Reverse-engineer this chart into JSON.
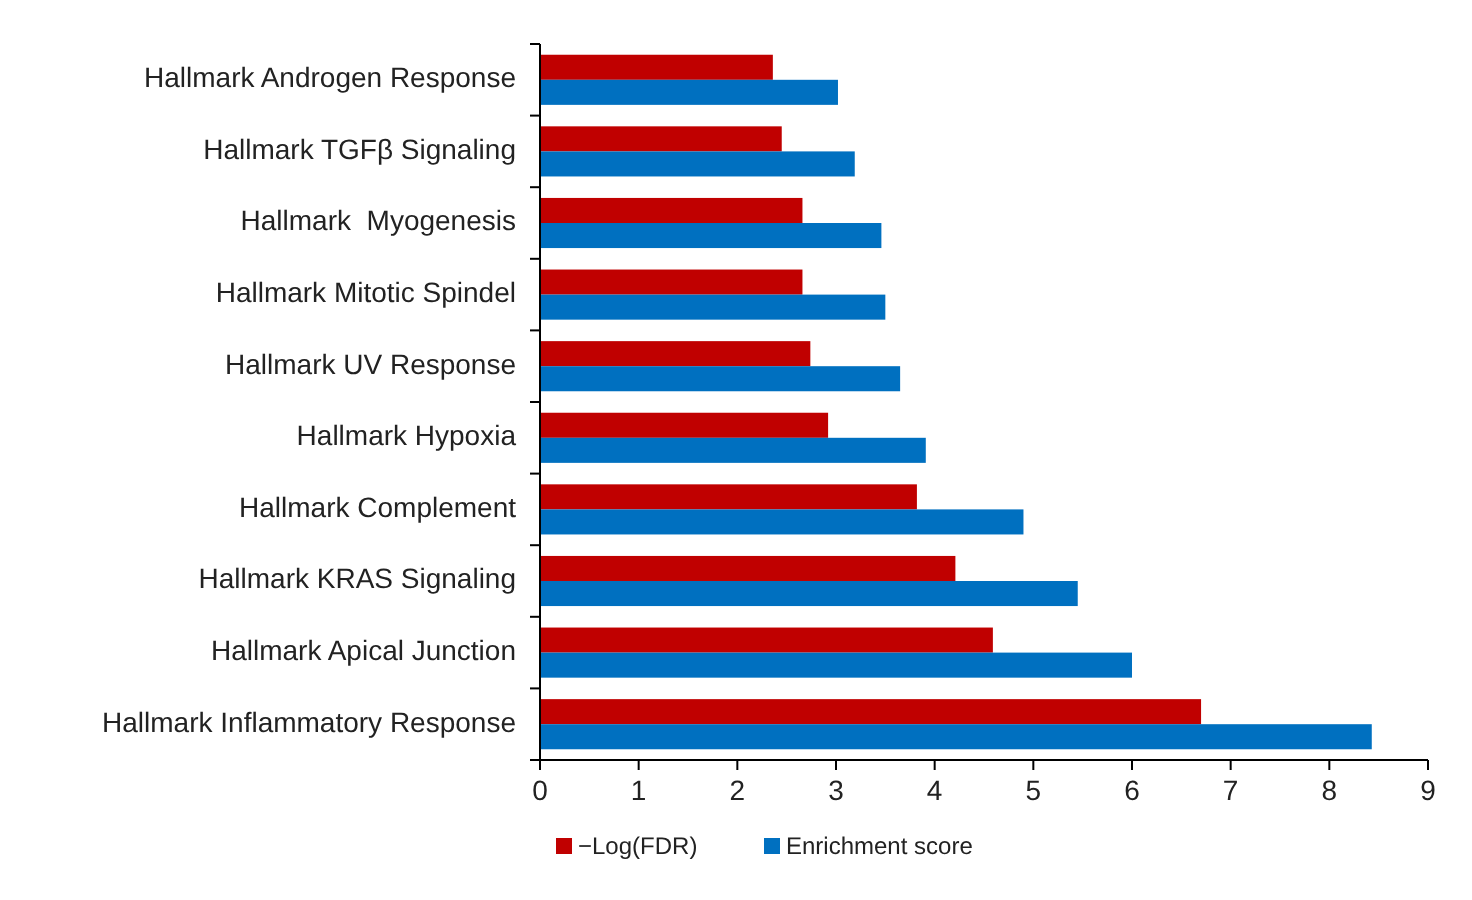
{
  "chart_data": {
    "type": "bar",
    "orientation": "horizontal",
    "categories": [
      "Hallmark Androgen Response",
      "Hallmark TGFβ Signaling",
      "Hallmark  Myogenesis",
      "Hallmark Mitotic Spindel",
      "Hallmark UV Response",
      "Hallmark Hypoxia",
      "Hallmark Complement",
      "Hallmark KRAS Signaling",
      "Hallmark Apical Junction",
      "Hallmark Inflammatory Response"
    ],
    "series": [
      {
        "name": "−Log(FDR)",
        "color": "#c00000",
        "values": [
          2.36,
          2.45,
          2.66,
          2.66,
          2.74,
          2.92,
          3.82,
          4.21,
          4.59,
          6.7
        ]
      },
      {
        "name": "Enrichment score",
        "color": "#0070c0",
        "values": [
          3.02,
          3.19,
          3.46,
          3.5,
          3.65,
          3.91,
          4.9,
          5.45,
          6.0,
          8.43
        ]
      }
    ],
    "xlim": [
      0,
      9
    ],
    "xticks": [
      0,
      1,
      2,
      3,
      4,
      5,
      6,
      7,
      8,
      9
    ],
    "grid": false,
    "legend": "bottom"
  }
}
